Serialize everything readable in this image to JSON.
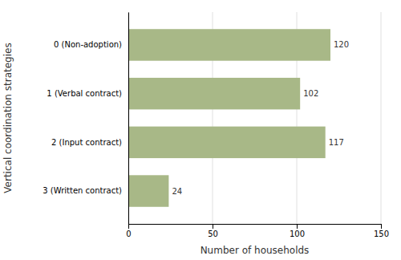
{
  "chart_data": {
    "type": "bar",
    "orientation": "horizontal",
    "categories": [
      "0 (Non-adoption)",
      "1 (Verbal contract)",
      "2 (Input contract)",
      "3 (Written contract)"
    ],
    "values": [
      120,
      102,
      117,
      24
    ],
    "color": "#a8b887",
    "xlabel": "Number of households",
    "ylabel": "Vertical coordination strategies",
    "xlim": [
      0,
      150
    ],
    "xticks": [
      0,
      50,
      100,
      150
    ],
    "grid": true,
    "data_labels": true
  }
}
